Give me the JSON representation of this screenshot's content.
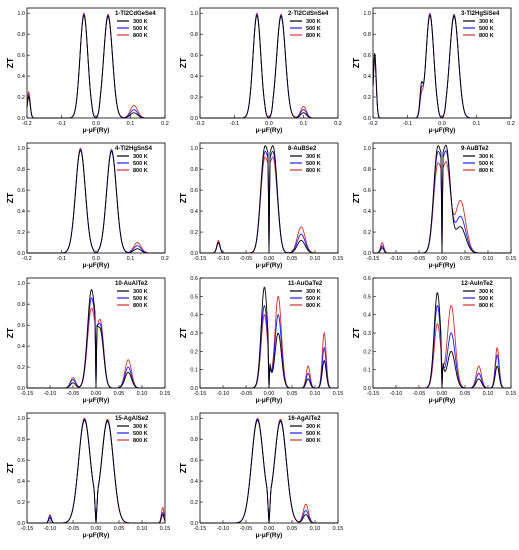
{
  "colors": {
    "300 K": "#000000",
    "500 K": "#1a1aff",
    "800 K": "#d03030"
  },
  "y_label": "ZT",
  "x_label": "μ-μF(Ry)",
  "legend_entries": [
    "300 K",
    "500 K",
    "800 K"
  ],
  "chart_data": [
    {
      "type": "line",
      "title": "1-Tl2CdGeSe4",
      "xlim": [
        -0.2,
        0.2
      ],
      "ylim": [
        0,
        1.05
      ],
      "xticks": [
        -0.2,
        -0.1,
        0.0,
        0.1,
        0.2
      ],
      "yticks": [
        0.0,
        0.2,
        0.4,
        0.6,
        0.8,
        1.0
      ],
      "peaks": [
        {
          "x": -0.035,
          "h300": 0.98,
          "h500": 0.99,
          "h800": 1.0,
          "w": 0.016
        },
        {
          "x": 0.035,
          "h300": 0.97,
          "h500": 0.98,
          "h800": 0.99,
          "w": 0.018
        },
        {
          "x": -0.195,
          "h300": 0.2,
          "h500": 0.22,
          "h800": 0.25,
          "w": 0.006
        },
        {
          "x": 0.11,
          "h300": 0.05,
          "h500": 0.08,
          "h800": 0.12,
          "w": 0.015
        }
      ],
      "gap": 0.012
    },
    {
      "type": "line",
      "title": "2-Tl2CdSnSe4",
      "xlim": [
        -0.2,
        0.2
      ],
      "ylim": [
        0,
        1.05
      ],
      "xticks": [
        -0.2,
        -0.1,
        0.0,
        0.1,
        0.2
      ],
      "yticks": [
        0.0,
        0.2,
        0.4,
        0.6,
        0.8,
        1.0
      ],
      "peaks": [
        {
          "x": -0.035,
          "h300": 0.98,
          "h500": 0.99,
          "h800": 1.0,
          "w": 0.016
        },
        {
          "x": 0.035,
          "h300": 0.97,
          "h500": 0.98,
          "h800": 0.99,
          "w": 0.018
        },
        {
          "x": 0.1,
          "h300": 0.05,
          "h500": 0.08,
          "h800": 0.11,
          "w": 0.012
        }
      ],
      "gap": 0.012
    },
    {
      "type": "line",
      "title": "3-Tl2HgSiSe4",
      "xlim": [
        -0.2,
        0.2
      ],
      "ylim": [
        0,
        1.05
      ],
      "xticks": [
        -0.2,
        -0.1,
        0.0,
        0.1,
        0.2
      ],
      "yticks": [
        0.0,
        0.2,
        0.4,
        0.6,
        0.8,
        1.0
      ],
      "peaks": [
        {
          "x": -0.035,
          "h300": 0.98,
          "h500": 0.99,
          "h800": 1.0,
          "w": 0.016
        },
        {
          "x": 0.035,
          "h300": 0.97,
          "h500": 0.98,
          "h800": 0.99,
          "w": 0.018
        },
        {
          "x": -0.195,
          "h300": 0.62,
          "h500": 0.6,
          "h800": 0.55,
          "w": 0.006
        },
        {
          "x": -0.06,
          "h300": 0.25,
          "h500": 0.2,
          "h800": 0.15,
          "w": 0.006
        }
      ],
      "gap": 0.012
    },
    {
      "type": "line",
      "title": "4-Tl2HgSnS4",
      "xlim": [
        -0.2,
        0.2
      ],
      "ylim": [
        0,
        1.05
      ],
      "xticks": [
        -0.2,
        -0.1,
        0.0,
        0.1,
        0.2
      ],
      "yticks": [
        0.0,
        0.2,
        0.4,
        0.6,
        0.8,
        1.0
      ],
      "peaks": [
        {
          "x": -0.045,
          "h300": 0.98,
          "h500": 0.99,
          "h800": 1.0,
          "w": 0.02
        },
        {
          "x": 0.045,
          "h300": 0.97,
          "h500": 0.98,
          "h800": 0.99,
          "w": 0.02
        },
        {
          "x": 0.12,
          "h300": 0.04,
          "h500": 0.07,
          "h800": 0.1,
          "w": 0.015
        }
      ],
      "gap": 0.008
    },
    {
      "type": "line",
      "title": "8-AuBSe2",
      "xlim": [
        -0.15,
        0.15
      ],
      "ylim": [
        0,
        1.05
      ],
      "xticks": [
        -0.15,
        -0.1,
        -0.05,
        0.0,
        0.05,
        0.1,
        0.15
      ],
      "yticks": [
        0.0,
        0.2,
        0.4,
        0.6,
        0.8,
        1.0
      ],
      "peaks": [
        {
          "x": -0.01,
          "h300": 0.95,
          "h500": 0.9,
          "h800": 0.85,
          "w": 0.012
        },
        {
          "x": 0.01,
          "h300": 0.95,
          "h500": 0.9,
          "h800": 0.85,
          "w": 0.012
        },
        {
          "x": 0.07,
          "h300": 0.12,
          "h500": 0.18,
          "h800": 0.25,
          "w": 0.012
        },
        {
          "x": -0.11,
          "h300": 0.1,
          "h500": 0.1,
          "h800": 0.12,
          "w": 0.005
        }
      ],
      "gap": 0.002
    },
    {
      "type": "line",
      "title": "9-AuBTe2",
      "xlim": [
        -0.15,
        0.15
      ],
      "ylim": [
        0,
        1.05
      ],
      "xticks": [
        -0.15,
        -0.1,
        -0.05,
        0.0,
        0.05,
        0.1,
        0.15
      ],
      "yticks": [
        0.0,
        0.2,
        0.4,
        0.6,
        0.8,
        1.0
      ],
      "peaks": [
        {
          "x": -0.01,
          "h300": 0.95,
          "h500": 0.9,
          "h800": 0.8,
          "w": 0.012
        },
        {
          "x": 0.01,
          "h300": 0.95,
          "h500": 0.9,
          "h800": 0.8,
          "w": 0.012
        },
        {
          "x": 0.04,
          "h300": 0.25,
          "h500": 0.35,
          "h800": 0.5,
          "w": 0.016
        },
        {
          "x": -0.13,
          "h300": 0.05,
          "h500": 0.07,
          "h800": 0.1,
          "w": 0.005
        }
      ],
      "gap": 0.002
    },
    {
      "type": "line",
      "title": "10-AuAlTe2",
      "xlim": [
        -0.15,
        0.15
      ],
      "ylim": [
        0,
        1.05
      ],
      "xticks": [
        -0.15,
        -0.1,
        -0.05,
        0.0,
        0.05,
        0.1,
        0.15
      ],
      "yticks": [
        0.0,
        0.2,
        0.4,
        0.6,
        0.8,
        1.0
      ],
      "peaks": [
        {
          "x": -0.01,
          "h300": 0.93,
          "h500": 0.85,
          "h800": 0.75,
          "w": 0.012
        },
        {
          "x": 0.01,
          "h300": 0.5,
          "h500": 0.55,
          "h800": 0.6,
          "w": 0.01
        },
        {
          "x": 0.07,
          "h300": 0.15,
          "h500": 0.2,
          "h800": 0.27,
          "w": 0.01
        },
        {
          "x": -0.05,
          "h300": 0.05,
          "h500": 0.08,
          "h800": 0.1,
          "w": 0.008
        }
      ],
      "gap": 0.002
    },
    {
      "type": "line",
      "title": "11-AuGaTe2",
      "xlim": [
        -0.15,
        0.15
      ],
      "ylim": [
        0,
        0.6
      ],
      "xticks": [
        -0.15,
        -0.1,
        -0.05,
        0.0,
        0.05,
        0.1,
        0.15
      ],
      "yticks": [
        0.0,
        0.1,
        0.2,
        0.3,
        0.4,
        0.5,
        0.6
      ],
      "peaks": [
        {
          "x": -0.01,
          "h300": 0.55,
          "h500": 0.45,
          "h800": 0.4,
          "w": 0.01
        },
        {
          "x": 0.02,
          "h300": 0.3,
          "h500": 0.4,
          "h800": 0.5,
          "w": 0.01
        },
        {
          "x": 0.12,
          "h300": 0.15,
          "h500": 0.22,
          "h800": 0.3,
          "w": 0.006
        },
        {
          "x": 0.085,
          "h300": 0.05,
          "h500": 0.08,
          "h800": 0.12,
          "w": 0.006
        }
      ],
      "gap": 0.002
    },
    {
      "type": "line",
      "title": "12-AuInTe2",
      "xlim": [
        -0.15,
        0.15
      ],
      "ylim": [
        0,
        0.6
      ],
      "xticks": [
        -0.15,
        -0.1,
        -0.05,
        0.0,
        0.05,
        0.1,
        0.15
      ],
      "yticks": [
        0.0,
        0.1,
        0.2,
        0.3,
        0.4,
        0.5,
        0.6
      ],
      "peaks": [
        {
          "x": -0.01,
          "h300": 0.52,
          "h500": 0.45,
          "h800": 0.35,
          "w": 0.01
        },
        {
          "x": 0.02,
          "h300": 0.2,
          "h500": 0.3,
          "h800": 0.45,
          "w": 0.012
        },
        {
          "x": 0.12,
          "h300": 0.12,
          "h500": 0.18,
          "h800": 0.22,
          "w": 0.006
        },
        {
          "x": 0.08,
          "h300": 0.05,
          "h500": 0.08,
          "h800": 0.12,
          "w": 0.008
        }
      ],
      "gap": 0.002
    },
    {
      "type": "line",
      "title": "15-AgAlSe2",
      "xlim": [
        -0.15,
        0.15
      ],
      "ylim": [
        0,
        1.05
      ],
      "xticks": [
        -0.15,
        -0.1,
        -0.05,
        0.0,
        0.05,
        0.1,
        0.15
      ],
      "yticks": [
        0.0,
        0.2,
        0.4,
        0.6,
        0.8,
        1.0
      ],
      "peaks": [
        {
          "x": -0.025,
          "h300": 0.98,
          "h500": 0.99,
          "h800": 1.0,
          "w": 0.018
        },
        {
          "x": 0.025,
          "h300": 0.97,
          "h500": 0.98,
          "h800": 0.99,
          "w": 0.018
        },
        {
          "x": -0.1,
          "h300": 0.05,
          "h500": 0.07,
          "h800": 0.08,
          "w": 0.004
        },
        {
          "x": 0.145,
          "h300": 0.08,
          "h500": 0.1,
          "h800": 0.15,
          "w": 0.004
        }
      ],
      "gap": 0.004
    },
    {
      "type": "line",
      "title": "16-AgAlTe2",
      "xlim": [
        -0.15,
        0.15
      ],
      "ylim": [
        0,
        1.05
      ],
      "xticks": [
        -0.15,
        -0.1,
        -0.05,
        0.0,
        0.05,
        0.1,
        0.15
      ],
      "yticks": [
        0.0,
        0.2,
        0.4,
        0.6,
        0.8,
        1.0
      ],
      "peaks": [
        {
          "x": -0.025,
          "h300": 0.98,
          "h500": 0.99,
          "h800": 1.0,
          "w": 0.018
        },
        {
          "x": 0.025,
          "h300": 0.97,
          "h500": 0.98,
          "h800": 0.99,
          "w": 0.018
        },
        {
          "x": 0.08,
          "h300": 0.08,
          "h500": 0.12,
          "h800": 0.18,
          "w": 0.008
        }
      ],
      "gap": 0.004
    }
  ]
}
